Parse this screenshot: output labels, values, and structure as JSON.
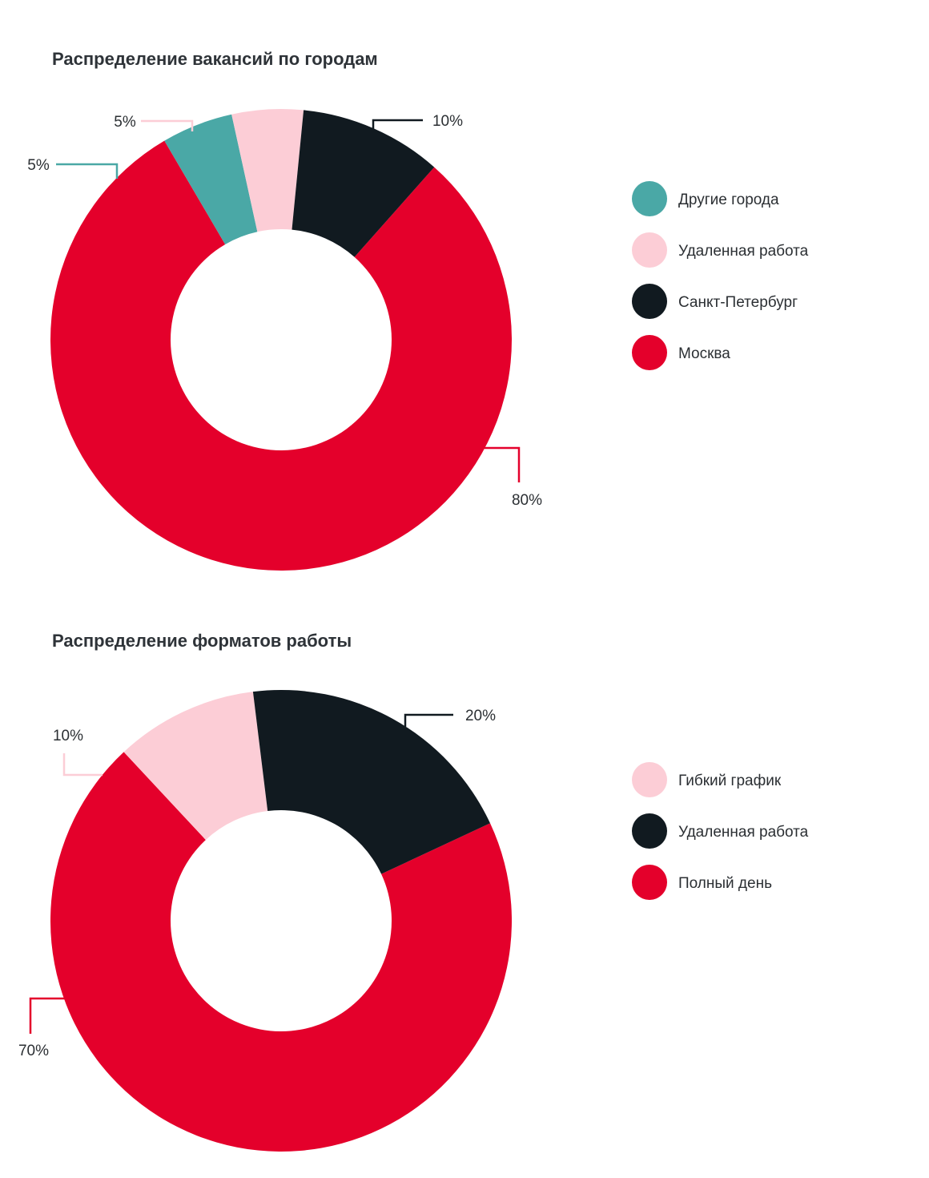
{
  "chart_data": [
    {
      "type": "pie",
      "title": "Распределение вакансий по городам",
      "categories": [
        "Москва",
        "Другие города",
        "Удаленная работа",
        "Санкт-Петербург"
      ],
      "values": [
        80,
        5,
        5,
        10
      ],
      "value_labels": [
        "80%",
        "5%",
        "5%",
        "10%"
      ],
      "colors": [
        "#e4002b",
        "#4aa8a6",
        "#fccdd6",
        "#111a20"
      ],
      "legend": {
        "placement": "right",
        "items": [
          {
            "label": "Другие города",
            "color": "#4aa8a6"
          },
          {
            "label": "Удаленная работа",
            "color": "#fccdd6"
          },
          {
            "label": "Санкт-Петербург",
            "color": "#111a20"
          },
          {
            "label": "Москва",
            "color": "#e4002b"
          }
        ]
      }
    },
    {
      "type": "pie",
      "title": "Распределение форматов работы",
      "categories": [
        "Полный день",
        "Гибкий график",
        "Удаленная работа"
      ],
      "values": [
        70,
        10,
        20
      ],
      "value_labels": [
        "70%",
        "10%",
        "20%"
      ],
      "colors": [
        "#e4002b",
        "#fccdd6",
        "#111a20"
      ],
      "legend": {
        "placement": "right",
        "items": [
          {
            "label": "Гибкий график",
            "color": "#fccdd6"
          },
          {
            "label": "Удаленная работа",
            "color": "#111a20"
          },
          {
            "label": "Полный день",
            "color": "#e4002b"
          }
        ]
      }
    }
  ]
}
